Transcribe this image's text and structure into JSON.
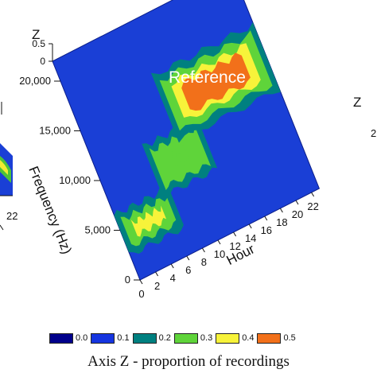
{
  "chart_data": {
    "type": "heatmap",
    "title": "Reference",
    "xlabel": "Hour",
    "ylabel": "Frequency (Hz)",
    "zlabel": "Z",
    "x_ticks": [
      "0",
      "2",
      "4",
      "6",
      "8",
      "10",
      "12",
      "14",
      "16",
      "18",
      "20",
      "22"
    ],
    "y_ticks": [
      "0",
      "5,000",
      "10,000",
      "15,000",
      "20,000"
    ],
    "z_ticks": [
      "0",
      "0.5"
    ],
    "xlim": [
      0,
      23
    ],
    "ylim": [
      0,
      22000
    ],
    "zlim": [
      0,
      0.5
    ],
    "legend": {
      "caption": "Axis Z - proportion of recordings",
      "entries": [
        {
          "label": "0.0",
          "color": "#00008b"
        },
        {
          "label": "0.1",
          "color": "#1535e0"
        },
        {
          "label": "0.2",
          "color": "#008080"
        },
        {
          "label": "0.3",
          "color": "#5fd43a"
        },
        {
          "label": "0.4",
          "color": "#f7f33a"
        },
        {
          "label": "0.5",
          "color": "#f2701a"
        }
      ]
    },
    "activity_bands": [
      {
        "hour_start": 0,
        "hour_end": 7,
        "freq_low": 2500,
        "freq_high": 6500,
        "peak": 0.42
      },
      {
        "hour_start": 6,
        "hour_end": 13,
        "freq_low": 6000,
        "freq_high": 11000,
        "peak": 0.3
      },
      {
        "hour_start": 10,
        "hour_end": 23,
        "freq_low": 10000,
        "freq_high": 16500,
        "peak": 0.45
      }
    ],
    "side_panel_labels": {
      "left_hour_tick": "22",
      "right_z_tick": "2"
    }
  }
}
